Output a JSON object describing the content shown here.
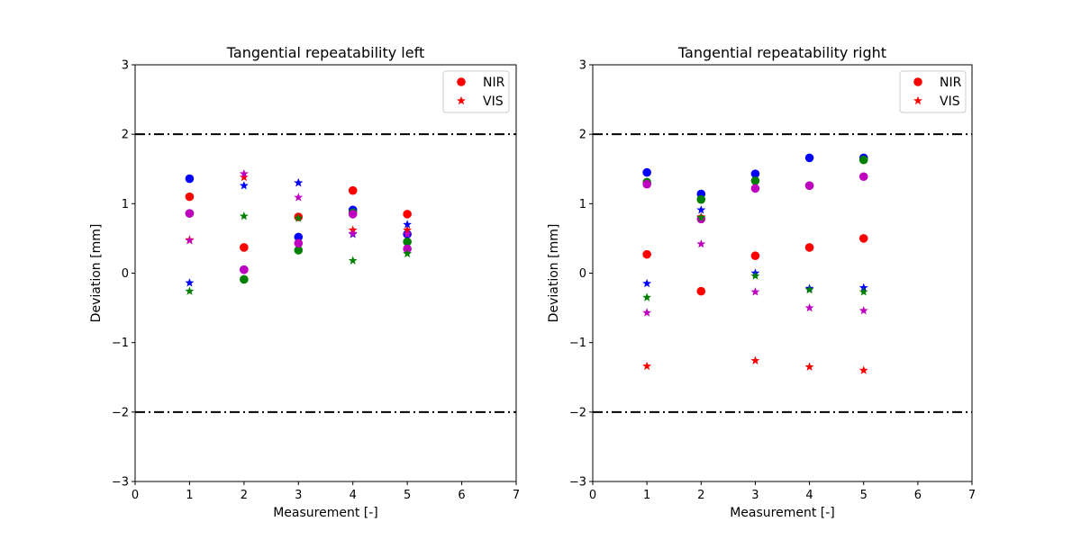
{
  "chart_data": [
    {
      "type": "scatter",
      "title": "Tangential repeatability left",
      "xlabel": "Measurement [-]",
      "ylabel": "Deviation [mm]",
      "xlim": [
        0,
        7
      ],
      "ylim": [
        -3,
        3
      ],
      "xticks": [
        "0",
        "1",
        "2",
        "3",
        "4",
        "5",
        "6",
        "7"
      ],
      "yticks": [
        "−3",
        "−2",
        "−1",
        "0",
        "1",
        "2",
        "3"
      ],
      "hlines": [
        2,
        -2
      ],
      "legend": {
        "placement": "top-right",
        "entries": [
          {
            "label": "NIR",
            "marker": "circle",
            "color": "#ff0000"
          },
          {
            "label": "VIS",
            "marker": "star",
            "color": "#ff0000"
          }
        ]
      },
      "series": [
        {
          "marker": "circle",
          "color": "#ff0000",
          "x": [
            1,
            2,
            3,
            4,
            5
          ],
          "y": [
            1.1,
            0.37,
            0.81,
            1.19,
            0.85
          ]
        },
        {
          "marker": "circle",
          "color": "#0000ff",
          "x": [
            1,
            2,
            3,
            4,
            5
          ],
          "y": [
            1.36,
            0.05,
            0.52,
            0.91,
            0.56
          ]
        },
        {
          "marker": "circle",
          "color": "#008000",
          "x": [
            1,
            2,
            3,
            4,
            5
          ],
          "y": [
            0.86,
            -0.09,
            0.33,
            0.87,
            0.45
          ]
        },
        {
          "marker": "circle",
          "color": "#bf00bf",
          "x": [
            1,
            2,
            3,
            4,
            5
          ],
          "y": [
            0.86,
            0.05,
            0.43,
            0.85,
            0.35
          ]
        },
        {
          "marker": "star",
          "color": "#ff0000",
          "x": [
            1,
            2,
            3,
            4,
            5
          ],
          "y": [
            0.48,
            1.38,
            1.3,
            0.62,
            0.62
          ]
        },
        {
          "marker": "star",
          "color": "#0000ff",
          "x": [
            1,
            2,
            3,
            4,
            5
          ],
          "y": [
            -0.14,
            1.26,
            1.3,
            0.56,
            0.7
          ]
        },
        {
          "marker": "star",
          "color": "#008000",
          "x": [
            1,
            2,
            3,
            4,
            5
          ],
          "y": [
            -0.26,
            0.82,
            0.79,
            0.18,
            0.28
          ]
        },
        {
          "marker": "star",
          "color": "#bf00bf",
          "x": [
            1,
            2,
            3,
            4,
            5
          ],
          "y": [
            0.47,
            1.43,
            1.09,
            0.57,
            0.56
          ]
        }
      ]
    },
    {
      "type": "scatter",
      "title": "Tangential repeatability right",
      "xlabel": "Measurement [-]",
      "ylabel": "Deviation [mm]",
      "xlim": [
        0,
        7
      ],
      "ylim": [
        -3,
        3
      ],
      "xticks": [
        "0",
        "1",
        "2",
        "3",
        "4",
        "5",
        "6",
        "7"
      ],
      "yticks": [
        "−3",
        "−2",
        "−1",
        "0",
        "1",
        "2",
        "3"
      ],
      "hlines": [
        2,
        -2
      ],
      "legend": {
        "placement": "top-right",
        "entries": [
          {
            "label": "NIR",
            "marker": "circle",
            "color": "#ff0000"
          },
          {
            "label": "VIS",
            "marker": "star",
            "color": "#ff0000"
          }
        ]
      },
      "series": [
        {
          "marker": "circle",
          "color": "#ff0000",
          "x": [
            1,
            2,
            3,
            4,
            5
          ],
          "y": [
            0.27,
            -0.26,
            0.25,
            0.37,
            0.5
          ]
        },
        {
          "marker": "circle",
          "color": "#0000ff",
          "x": [
            1,
            2,
            3,
            4,
            5
          ],
          "y": [
            1.45,
            1.14,
            1.43,
            1.66,
            1.66
          ]
        },
        {
          "marker": "circle",
          "color": "#008000",
          "x": [
            1,
            2,
            3,
            4,
            5
          ],
          "y": [
            1.31,
            1.06,
            1.33,
            1.26,
            1.63
          ]
        },
        {
          "marker": "circle",
          "color": "#bf00bf",
          "x": [
            1,
            2,
            3,
            4,
            5
          ],
          "y": [
            1.28,
            0.78,
            1.22,
            1.26,
            1.39
          ]
        },
        {
          "marker": "star",
          "color": "#ff0000",
          "x": [
            1,
            2,
            3,
            4,
            5
          ],
          "y": [
            -1.34,
            0.81,
            -1.26,
            -1.35,
            -1.4
          ]
        },
        {
          "marker": "star",
          "color": "#0000ff",
          "x": [
            1,
            2,
            3,
            4,
            5
          ],
          "y": [
            -0.15,
            0.91,
            0.0,
            -0.22,
            -0.21
          ]
        },
        {
          "marker": "star",
          "color": "#008000",
          "x": [
            1,
            2,
            3,
            4,
            5
          ],
          "y": [
            -0.35,
            0.8,
            -0.04,
            -0.24,
            -0.27
          ]
        },
        {
          "marker": "star",
          "color": "#bf00bf",
          "x": [
            1,
            2,
            3,
            4,
            5
          ],
          "y": [
            -0.57,
            0.42,
            -0.27,
            -0.5,
            -0.54
          ]
        }
      ]
    }
  ]
}
